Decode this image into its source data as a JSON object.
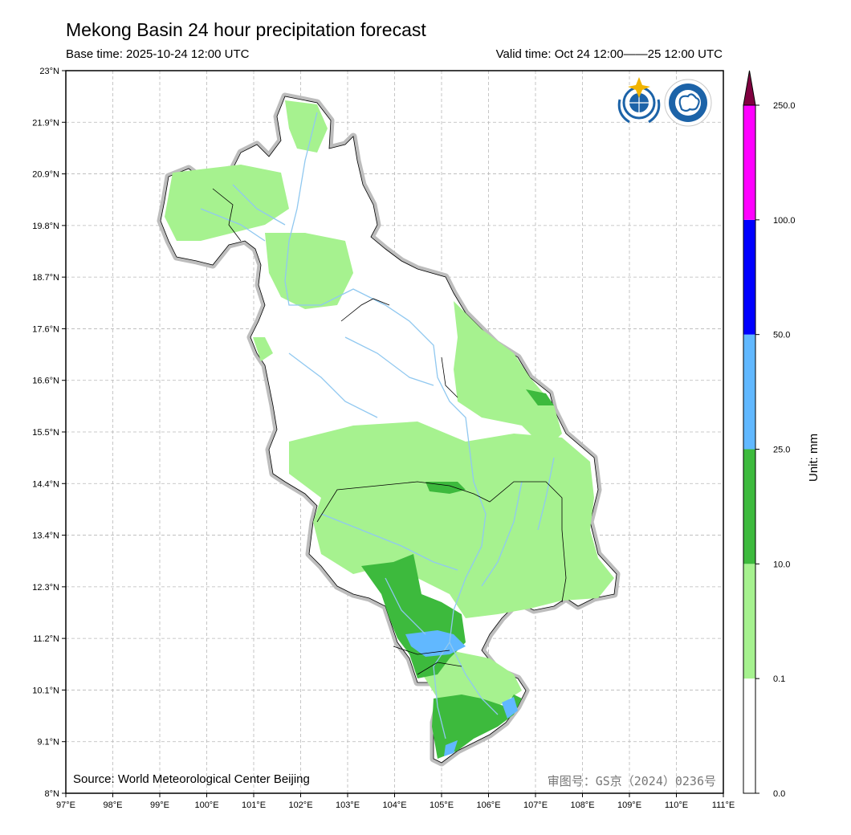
{
  "title": "Mekong Basin 24 hour precipitation forecast",
  "base_time": "Base time: 2025-10-24 12:00 UTC",
  "valid_time": "Valid time: Oct 24 12:00——25 12:00 UTC",
  "source": "Source: World Meteorological Center Beijing",
  "review_number": "审图号：GS京（2024）0236号",
  "axes": {
    "lon_labels": [
      "97°E",
      "98°E",
      "99°E",
      "100°E",
      "101°E",
      "102°E",
      "103°E",
      "104°E",
      "105°E",
      "106°E",
      "107°E",
      "108°E",
      "109°E",
      "110°E",
      "111°E"
    ],
    "lat_labels": [
      "23°N",
      "21.9°N",
      "20.9°N",
      "19.8°N",
      "18.7°N",
      "17.6°N",
      "16.6°N",
      "15.5°N",
      "14.4°N",
      "13.4°N",
      "12.3°N",
      "11.2°N",
      "10.1°N",
      "9.1°N",
      "8°N"
    ],
    "lon_range": [
      97,
      111
    ],
    "lat_range": [
      8,
      23
    ],
    "grid": "dashed"
  },
  "colorbar": {
    "unit_label": "Unit: mm",
    "levels": [
      "0.0",
      "0.1",
      "10.0",
      "25.0",
      "50.0",
      "100.0",
      "250.0"
    ],
    "colors": [
      "#ffffff",
      "#a6f28f",
      "#3dba3d",
      "#61b8ff",
      "#0000ff",
      "#ff00ff",
      "#800040"
    ]
  },
  "logos": [
    "wmo-logo",
    "cma-logo"
  ]
}
